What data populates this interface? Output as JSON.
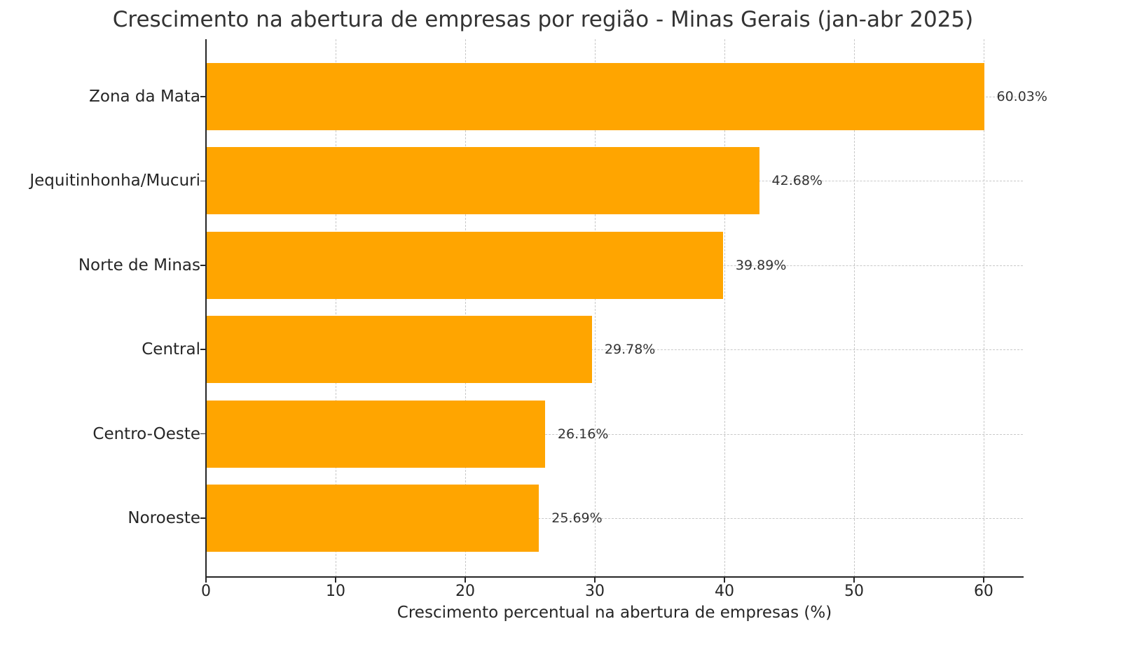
{
  "chart_data": {
    "type": "bar",
    "orientation": "horizontal",
    "title": "Crescimento na abertura de empresas por região - Minas Gerais (jan-abr 2025)",
    "xlabel": "Crescimento percentual na abertura de empresas (%)",
    "ylabel": "",
    "categories": [
      "Zona da Mata",
      "Jequitinhonha/Mucuri",
      "Norte de Minas",
      "Central",
      "Centro-Oeste",
      "Noroeste"
    ],
    "values": [
      60.03,
      42.68,
      39.89,
      29.78,
      26.16,
      25.69
    ],
    "data_labels": [
      "60.03%",
      "42.68%",
      "39.89%",
      "29.78%",
      "26.16%",
      "25.69%"
    ],
    "xlim": [
      0,
      63.03
    ],
    "x_ticks": [
      0,
      10,
      20,
      30,
      40,
      50,
      60
    ],
    "x_tick_labels": [
      "0",
      "10",
      "20",
      "30",
      "40",
      "50",
      "60"
    ],
    "grid": true,
    "grid_style": "dashed",
    "legend": null,
    "bar_color": "#FFA500"
  }
}
